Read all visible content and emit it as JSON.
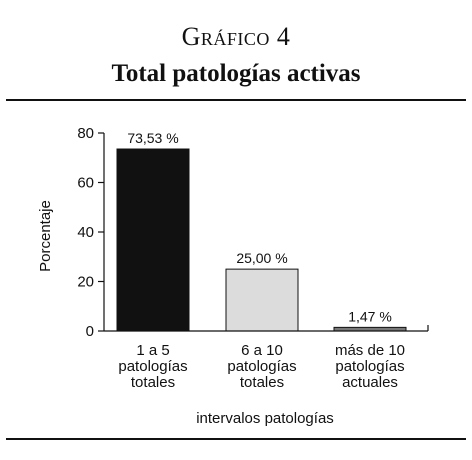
{
  "figure": {
    "label": "Gráfico 4",
    "title": "Total patologías activas"
  },
  "chart_data": {
    "type": "bar",
    "title": "Total patologías activas",
    "xlabel": "intervalos patologías",
    "ylabel": "Porcentaje",
    "ylim": [
      0,
      80
    ],
    "yticks": [
      0,
      20,
      40,
      60,
      80
    ],
    "categories": [
      [
        "1 a 5",
        "patologías",
        "totales"
      ],
      [
        "6 a 10",
        "patologías",
        "totales"
      ],
      [
        "más de 10",
        "patologías",
        "actuales"
      ]
    ],
    "values": [
      73.53,
      25.0,
      1.47
    ],
    "data_labels": [
      "73,53 %",
      "25,00 %",
      "1,47 %"
    ],
    "bar_colors": [
      "#111111",
      "#dcdcdc",
      "#777777"
    ],
    "grid": false,
    "legend": "none"
  }
}
